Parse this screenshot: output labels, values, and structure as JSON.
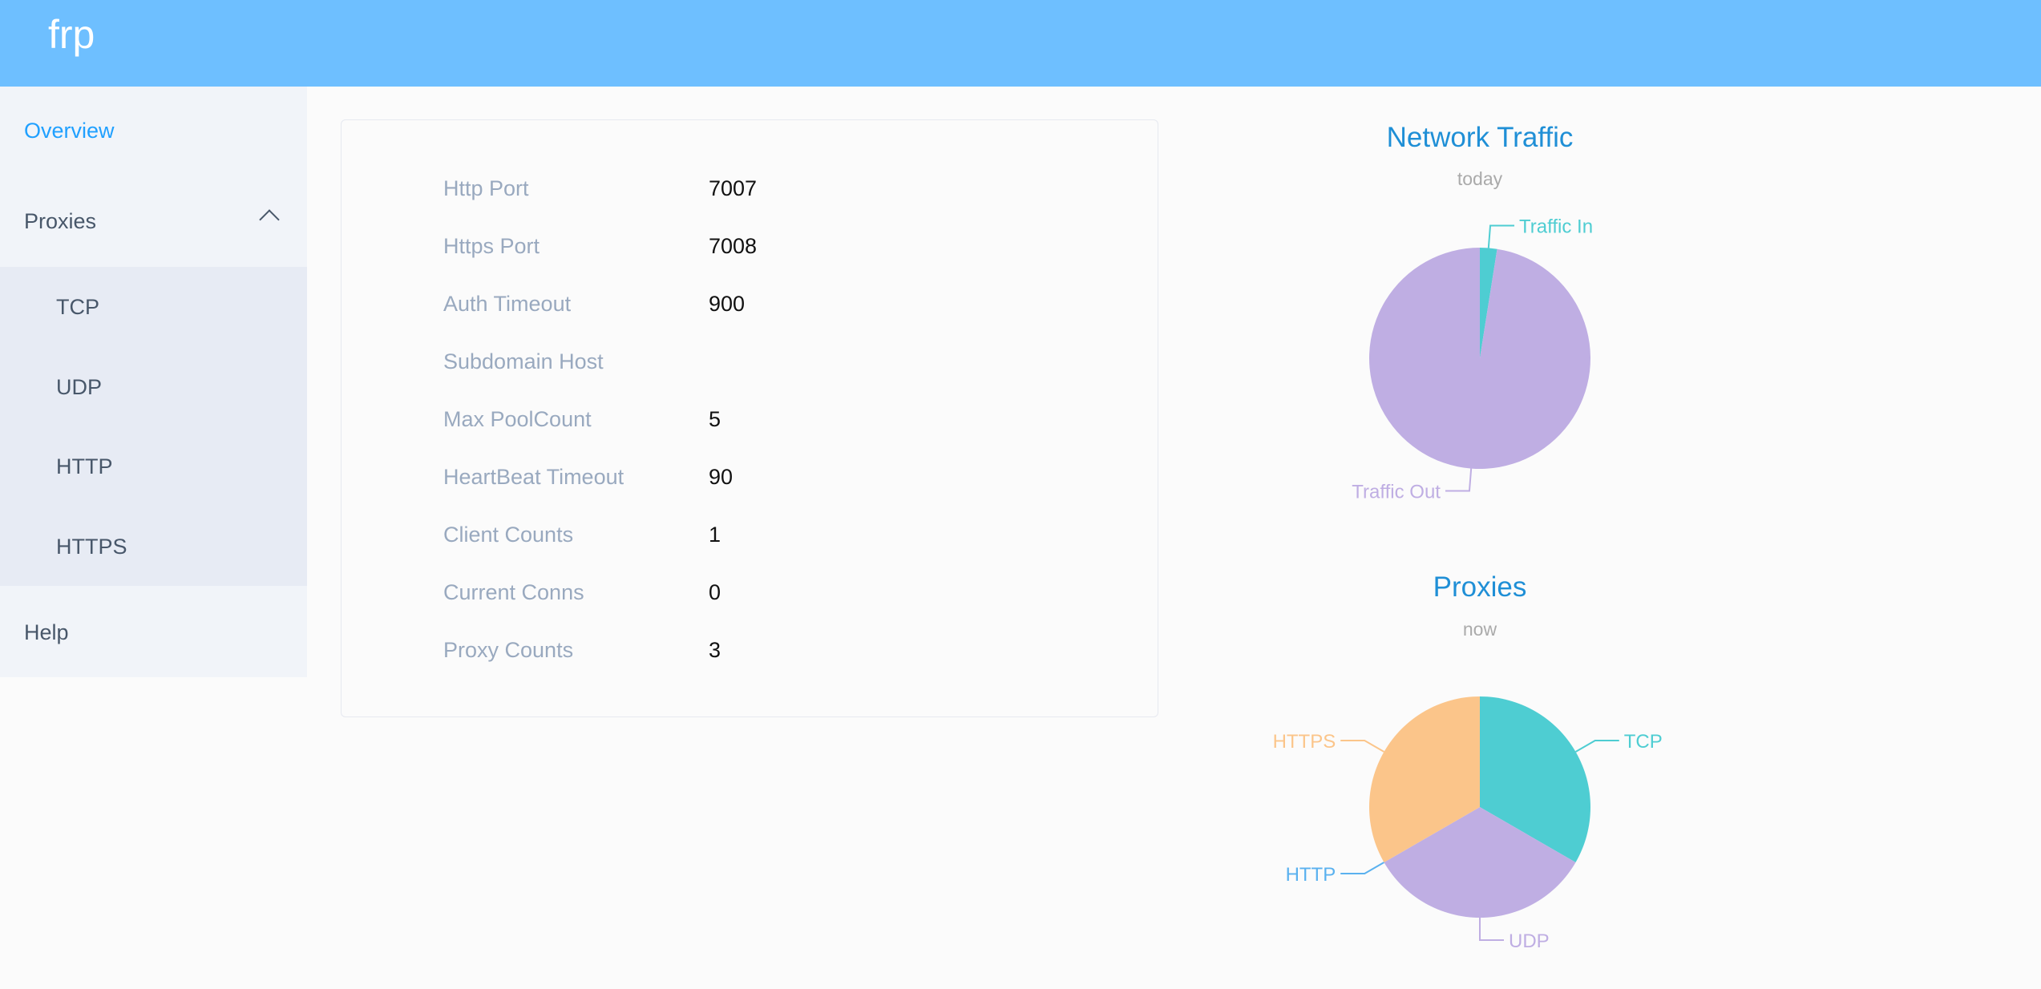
{
  "header": {
    "logo": "frp"
  },
  "sidebar": {
    "items": [
      {
        "label": "Overview",
        "active": true
      },
      {
        "label": "Proxies",
        "expanded": true,
        "icon": "chevron-up-icon"
      },
      {
        "label": "Help"
      }
    ],
    "proxies_submenu": [
      {
        "label": "TCP"
      },
      {
        "label": "UDP"
      },
      {
        "label": "HTTP"
      },
      {
        "label": "HTTPS"
      }
    ]
  },
  "server_info": [
    {
      "label": "Http Port",
      "value": "7007"
    },
    {
      "label": "Https Port",
      "value": "7008"
    },
    {
      "label": "Auth Timeout",
      "value": "900"
    },
    {
      "label": "Subdomain Host",
      "value": ""
    },
    {
      "label": "Max PoolCount",
      "value": "5"
    },
    {
      "label": "HeartBeat Timeout",
      "value": "90"
    },
    {
      "label": "Client Counts",
      "value": "1"
    },
    {
      "label": "Current Conns",
      "value": "0"
    },
    {
      "label": "Proxy Counts",
      "value": "3"
    }
  ],
  "chart_data": [
    {
      "type": "pie",
      "title": "Network Traffic",
      "subtitle": "today",
      "categories": [
        "Traffic In",
        "Traffic Out"
      ],
      "values": [
        2.5,
        97.5
      ],
      "colors": [
        "#4ecdd2",
        "#bfaee3"
      ]
    },
    {
      "type": "pie",
      "title": "Proxies",
      "subtitle": "now",
      "categories": [
        "TCP",
        "UDP",
        "HTTP",
        "HTTPS"
      ],
      "values": [
        1,
        1,
        0,
        1
      ],
      "colors": [
        "#4ecdd2",
        "#bfaee3",
        "#5ab1ef",
        "#fbc58a"
      ]
    }
  ]
}
